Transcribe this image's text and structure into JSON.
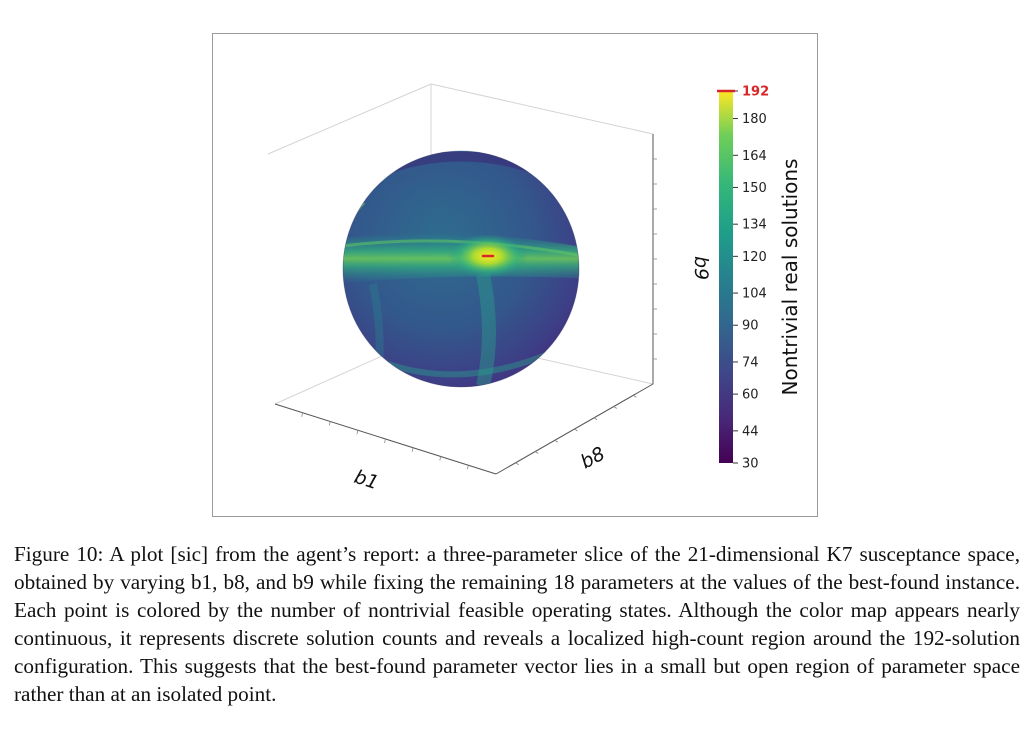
{
  "figure": {
    "caption": "Figure 10: A plot [sic] from the agent’s report: a three-parameter slice of the 21-dimensional K7 susceptance space, obtained by varying b1, b8, and b9 while fixing the remaining 18 parameters at the values of the best-found instance. Each point is colored by the number of nontrivial feasible operating states. Although the color map appears nearly continuous, it represents discrete solution counts and reveals a localized high-count region around the 192-solution configuration. This suggests that the best-found parameter vector lies in a small but open region of parameter space rather than at an isolated point."
  },
  "chart_data": {
    "type": "scatter",
    "projection": "3d",
    "surface": "sphere",
    "axes": {
      "x": {
        "label": "b1",
        "ticks": []
      },
      "y": {
        "label": "b8",
        "ticks": []
      },
      "z": {
        "label": "b9",
        "ticks": []
      }
    },
    "colorbar": {
      "label": "Nontrivial real solutions",
      "colormap": "viridis",
      "range": [
        30,
        192
      ],
      "ticks": [
        30,
        44,
        60,
        74,
        90,
        104,
        120,
        134,
        150,
        164,
        180,
        192
      ],
      "highlight": {
        "value": 192,
        "color": "#d62728"
      }
    },
    "marked_point": {
      "label": "192",
      "value": 192,
      "color": "#d62728"
    },
    "grid": false,
    "colors": {
      "low": "#440154",
      "mid": "#21918c",
      "high": "#fde725",
      "marker": "#d62728"
    }
  }
}
